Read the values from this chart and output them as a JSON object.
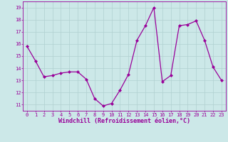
{
  "x": [
    0,
    1,
    2,
    3,
    4,
    5,
    6,
    7,
    8,
    9,
    10,
    11,
    12,
    13,
    14,
    15,
    16,
    17,
    18,
    19,
    20,
    21,
    22,
    23
  ],
  "y": [
    15.8,
    14.6,
    13.3,
    13.4,
    13.6,
    13.7,
    13.7,
    13.1,
    11.5,
    10.9,
    11.1,
    12.2,
    13.5,
    16.3,
    17.5,
    19.0,
    12.9,
    13.4,
    17.5,
    17.6,
    17.9,
    16.3,
    14.1,
    13.0
  ],
  "line_color": "#990099",
  "marker": "D",
  "marker_size": 2.0,
  "bg_color": "#cce8e8",
  "grid_color": "#b0d0d0",
  "xlabel": "Windchill (Refroidissement éolien,°C)",
  "xlabel_color": "#990099",
  "tick_color": "#990099",
  "xlim": [
    -0.5,
    23.5
  ],
  "ylim": [
    10.5,
    19.5
  ],
  "yticks": [
    11,
    12,
    13,
    14,
    15,
    16,
    17,
    18,
    19
  ],
  "xticks": [
    0,
    1,
    2,
    3,
    4,
    5,
    6,
    7,
    8,
    9,
    10,
    11,
    12,
    13,
    14,
    15,
    16,
    17,
    18,
    19,
    20,
    21,
    22,
    23
  ],
  "tick_fontsize": 5.0,
  "xlabel_fontsize": 6.0,
  "ylabel_fontsize": 6.0,
  "linewidth": 0.9
}
